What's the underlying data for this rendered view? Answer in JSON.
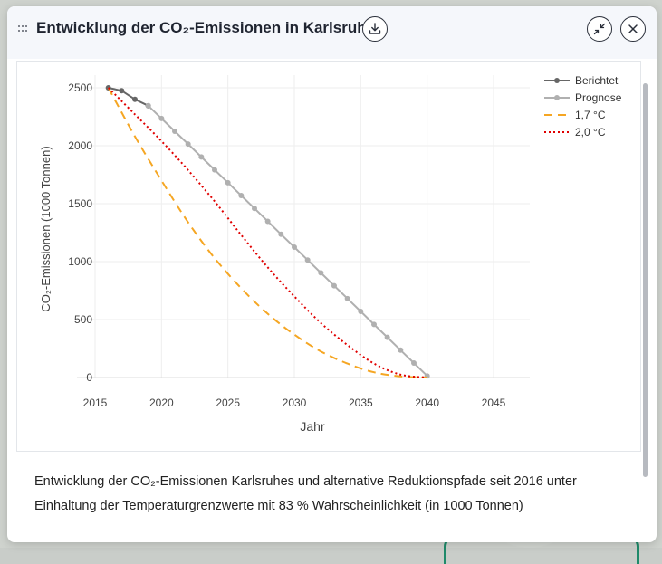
{
  "header": {
    "title": "Entwicklung der CO₂-Emissionen in Karlsruhe",
    "download_icon": "download-icon",
    "collapse_icon": "collapse-icon",
    "close_icon": "close-icon"
  },
  "caption": "Entwicklung der CO₂-Emissionen Karlsruhes und alternative Reduktionspfade seit 2016 unter Einhaltung der Temperaturgrenzwerte mit 83 % Wahrscheinlichkeit (in 1000 Tonnen)",
  "chart_data": {
    "type": "line",
    "title": "",
    "xlabel": "Jahr",
    "ylabel": "CO₂-Emissionen (1000 Tonnen)",
    "xlim": [
      2015,
      2047
    ],
    "ylim": [
      0,
      2600
    ],
    "xticks": [
      2015,
      2020,
      2025,
      2030,
      2035,
      2040,
      2045
    ],
    "yticks": [
      0,
      500,
      1000,
      1500,
      2000,
      2500
    ],
    "legend_position": "top-right",
    "series": [
      {
        "name": "Berichtet",
        "color": "#666666",
        "style": "solid-markers",
        "x": [
          2016,
          2017,
          2018,
          2019
        ],
        "y": [
          2500,
          2475,
          2400,
          2345
        ]
      },
      {
        "name": "Prognose",
        "color": "#b0b0b0",
        "style": "solid-markers",
        "x": [
          2019,
          2020,
          2021,
          2022,
          2023,
          2024,
          2025,
          2026,
          2027,
          2028,
          2029,
          2030,
          2031,
          2032,
          2033,
          2034,
          2035,
          2036,
          2037,
          2038,
          2039,
          2040
        ],
        "y": [
          2345,
          2235,
          2125,
          2015,
          1903,
          1792,
          1681,
          1570,
          1459,
          1348,
          1236,
          1125,
          1014,
          903,
          792,
          681,
          570,
          458,
          347,
          236,
          125,
          14
        ]
      },
      {
        "name": "1,7 °C",
        "color": "#f5a623",
        "style": "dashed",
        "x": [
          2016,
          2018,
          2020,
          2022,
          2024,
          2026,
          2028,
          2030,
          2032,
          2034,
          2036,
          2038,
          2040
        ],
        "y": [
          2500,
          2080,
          1700,
          1340,
          1030,
          770,
          550,
          370,
          225,
          120,
          45,
          10,
          0
        ]
      },
      {
        "name": "2,0 °C",
        "color": "#e00000",
        "style": "dotted",
        "x": [
          2016,
          2018,
          2020,
          2022,
          2024,
          2026,
          2028,
          2030,
          2032,
          2034,
          2036,
          2038,
          2040
        ],
        "y": [
          2500,
          2270,
          2040,
          1790,
          1520,
          1230,
          950,
          700,
          470,
          280,
          120,
          25,
          0
        ]
      }
    ]
  }
}
